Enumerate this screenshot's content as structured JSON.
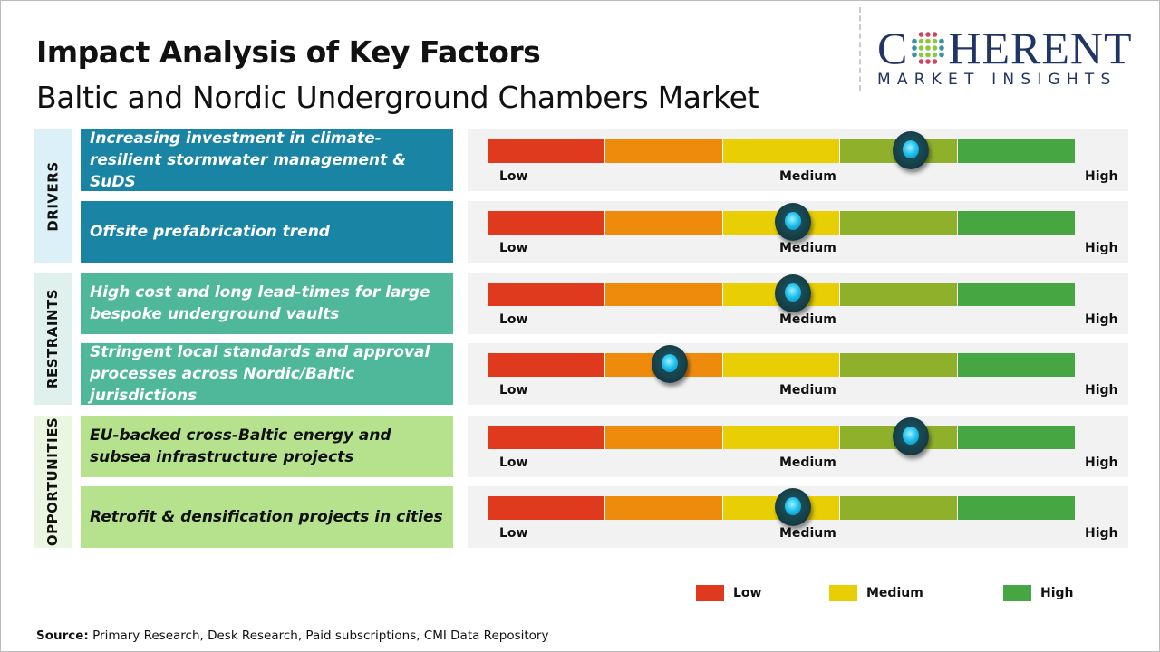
{
  "title": "Impact Analysis of Key Factors",
  "subtitle": "Baltic and Nordic Underground Chambers Market",
  "logo": {
    "top_left": "C",
    "top_right": "HERENT",
    "bottom": "MARKET INSIGHTS"
  },
  "scale_labels": {
    "low": "Low",
    "medium": "Medium",
    "high": "High"
  },
  "segment_colors": [
    "#e03a1e",
    "#ee8a0c",
    "#e8cf05",
    "#8fb02a",
    "#46a642"
  ],
  "categories": [
    {
      "label": "DRIVERS",
      "box_color": "#1a84a5",
      "text_color": "#ffffff",
      "bg": "#dcf0f8"
    },
    {
      "label": "RESTRAINTS",
      "box_color": "#4fb89a",
      "text_color": "#ffffff",
      "bg": "#e0f1ed"
    },
    {
      "label": "OPPORTUNITIES",
      "box_color": "#b6e28e",
      "text_color": "#111111",
      "bg": "#eaf6e2"
    }
  ],
  "factors": [
    {
      "category": 0,
      "text": "Increasing investment in climate-resilient stormwater management & SuDS",
      "impact": 0.72
    },
    {
      "category": 0,
      "text": "Offsite prefabrication trend",
      "impact": 0.52
    },
    {
      "category": 1,
      "text": "High cost and long lead-times for large bespoke underground vaults",
      "impact": 0.52
    },
    {
      "category": 1,
      "text": "Stringent local standards and approval processes across Nordic/Baltic jurisdictions",
      "impact": 0.31
    },
    {
      "category": 2,
      "text": "EU-backed cross-Baltic energy and subsea infrastructure projects",
      "impact": 0.72
    },
    {
      "category": 2,
      "text": "Retrofit & densification projects in cities",
      "impact": 0.52
    }
  ],
  "legend": [
    {
      "label": "Low",
      "color": "#e03a1e"
    },
    {
      "label": "Medium",
      "color": "#e8cf05"
    },
    {
      "label": "High",
      "color": "#46a642"
    }
  ],
  "source": {
    "label": "Source:",
    "text": " Primary Research, Desk Research, Paid subscriptions, CMI Data Repository"
  }
}
